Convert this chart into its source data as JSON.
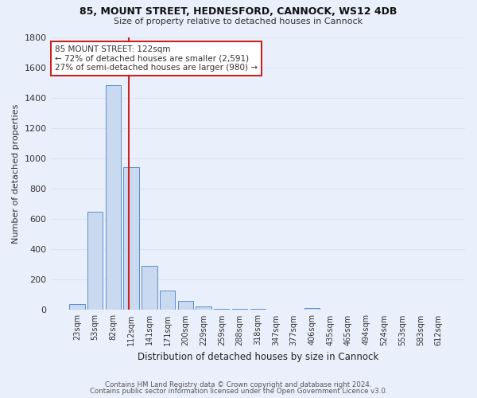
{
  "title1": "85, MOUNT STREET, HEDNESFORD, CANNOCK, WS12 4DB",
  "title2": "Size of property relative to detached houses in Cannock",
  "xlabel": "Distribution of detached houses by size in Cannock",
  "ylabel": "Number of detached properties",
  "footnote1": "Contains HM Land Registry data © Crown copyright and database right 2024.",
  "footnote2": "Contains public sector information licensed under the Open Government Licence v3.0.",
  "categories": [
    "23sqm",
    "53sqm",
    "82sqm",
    "112sqm",
    "141sqm",
    "171sqm",
    "200sqm",
    "229sqm",
    "259sqm",
    "288sqm",
    "318sqm",
    "347sqm",
    "377sqm",
    "406sqm",
    "435sqm",
    "465sqm",
    "494sqm",
    "524sqm",
    "553sqm",
    "583sqm",
    "612sqm"
  ],
  "values": [
    40,
    650,
    1480,
    940,
    290,
    130,
    60,
    22,
    10,
    8,
    5,
    4,
    3,
    14,
    0,
    0,
    0,
    0,
    0,
    0,
    0
  ],
  "bar_color": "#c8d9f0",
  "bar_edge_color": "#5b8fc9",
  "bg_color": "#eaf0fb",
  "grid_color": "#d8e4f5",
  "vline_color": "#cc2222",
  "vline_x_index": 2.85,
  "annotation_text": "85 MOUNT STREET: 122sqm\n← 72% of detached houses are smaller (2,591)\n27% of semi-detached houses are larger (980) →",
  "annotation_box_color": "#ffffff",
  "annotation_box_edge": "#cc2222",
  "ylim": [
    0,
    1800
  ],
  "yticks": [
    0,
    200,
    400,
    600,
    800,
    1000,
    1200,
    1400,
    1600,
    1800
  ]
}
